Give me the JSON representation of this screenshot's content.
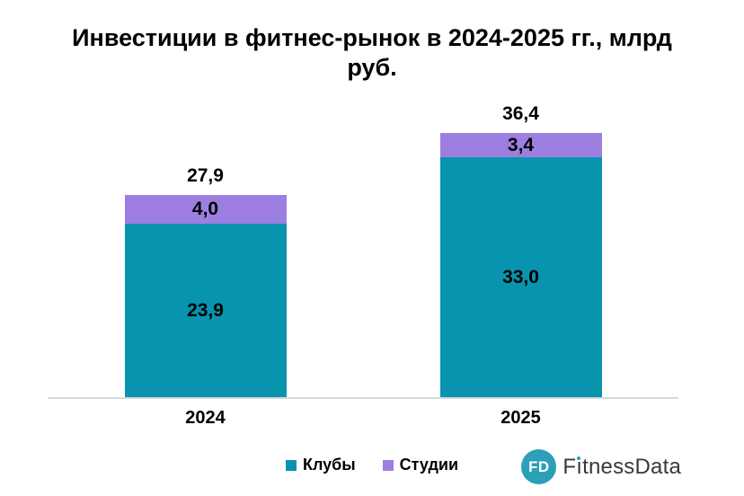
{
  "title": "Инвестиции в фитнес-рынок в 2024-2025 гг., млрд руб.",
  "colors": {
    "clubs": "#0894AF",
    "studios": "#9C7FE0",
    "axis_line": "#D9D9D9",
    "text": "#000000",
    "background": "#FFFFFF",
    "logo_circle": "#2CA0B7",
    "logo_text": "#35393E"
  },
  "chart_data": {
    "type": "bar",
    "stacked": true,
    "title": "Инвестиции в фитнес-рынок в 2024-2025 гг., млрд руб.",
    "categories": [
      "2024",
      "2025"
    ],
    "series": [
      {
        "key": "clubs",
        "name": "Клубы",
        "color": "#0894AF",
        "values": [
          23.9,
          33.0
        ],
        "labels": [
          "23,9",
          "33,0"
        ]
      },
      {
        "key": "studios",
        "name": "Студии",
        "color": "#9C7FE0",
        "values": [
          4.0,
          3.4
        ],
        "labels": [
          "4,0",
          "3,4"
        ]
      }
    ],
    "totals": [
      27.9,
      36.4
    ],
    "total_labels": [
      "27,9",
      "36,4"
    ],
    "ylim": [
      0,
      42
    ],
    "grid": false,
    "axis_ticks_visible": false,
    "legend_position": "bottom"
  },
  "legend": {
    "items": [
      {
        "key": "clubs",
        "label": "Клубы",
        "color": "#0894AF"
      },
      {
        "key": "studios",
        "label": "Студии",
        "color": "#9C7FE0"
      }
    ]
  },
  "logo": {
    "badge": "FD",
    "name": "FitnessData",
    "name_first": "F",
    "name_dotless_i": "ı",
    "name_rest": "tnessData",
    "circle_color": "#2CA0B7",
    "dot_color": "#2CA0B7",
    "text_color": "#35393E"
  }
}
